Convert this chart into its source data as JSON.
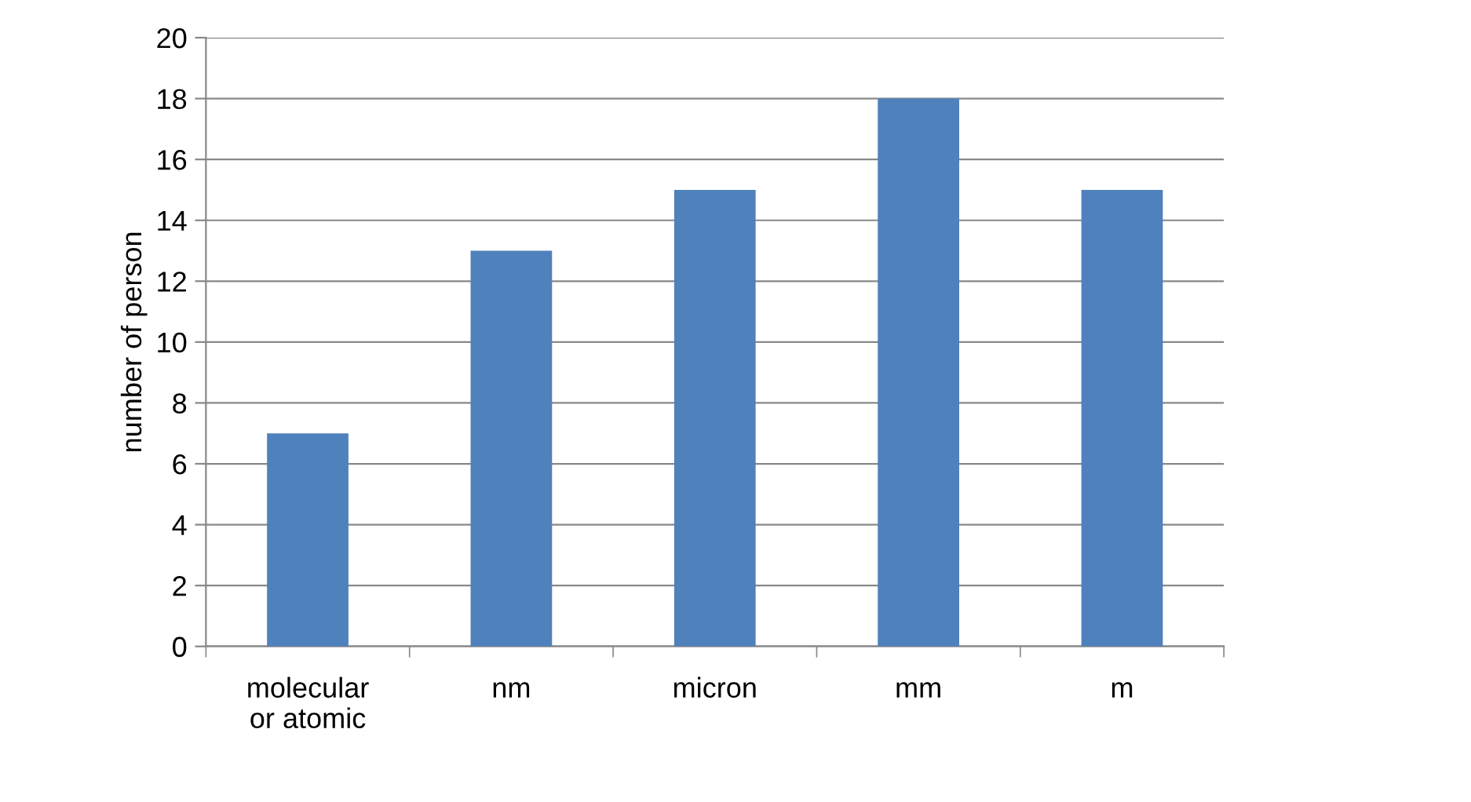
{
  "chart_data": {
    "type": "bar",
    "ylabel": "number of person",
    "categories": [
      "molecular\nor atomic",
      "nm",
      "micron",
      "mm",
      "m"
    ],
    "values": [
      7,
      13,
      15,
      18,
      15
    ],
    "color": "#4f81bd",
    "ylim": [
      0,
      20
    ],
    "yticks": [
      0,
      2,
      4,
      6,
      8,
      10,
      12,
      14,
      16,
      18,
      20
    ],
    "grid": "y",
    "legend": false
  }
}
